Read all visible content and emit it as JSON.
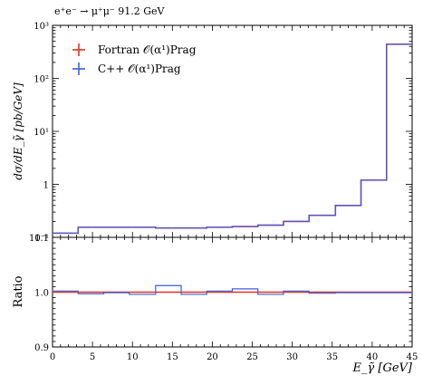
{
  "chart_data": [
    {
      "panel": "main",
      "type": "histogram",
      "process_label": "e⁺e⁻ → μ⁺μ⁻ 91.2 GeV",
      "ylabel": "dσ/dE_γ̃ [pb/GeV]",
      "yscale": "log",
      "ylim": [
        0.1,
        1000
      ],
      "xlim": [
        0,
        45
      ],
      "ytick_labels": [
        "10⁻¹",
        "1",
        "10¹",
        "10²",
        "10³"
      ],
      "legend_position": "top-left",
      "bin_edges": [
        0,
        3.2,
        6.4,
        9.6,
        12.9,
        16.1,
        19.3,
        22.5,
        25.7,
        28.9,
        32.1,
        35.4,
        38.6,
        41.8,
        45
      ],
      "series": [
        {
          "name": "Fortran 𝒪(α¹)Prag",
          "color": "#e8311f",
          "values": [
            0.12,
            0.155,
            0.155,
            0.155,
            0.15,
            0.15,
            0.155,
            0.16,
            0.17,
            0.2,
            0.26,
            0.4,
            1.2,
            440
          ]
        },
        {
          "name": "C++ 𝒪(α¹)Prag",
          "color": "#3a5fe0",
          "values": [
            0.12,
            0.155,
            0.155,
            0.155,
            0.15,
            0.15,
            0.155,
            0.16,
            0.17,
            0.2,
            0.26,
            0.4,
            1.2,
            440
          ]
        }
      ]
    },
    {
      "panel": "ratio",
      "type": "histogram",
      "ylabel": "Ratio",
      "xlabel": "E_γ̃ [GeV]",
      "ylim": [
        0.9,
        1.1
      ],
      "xlim": [
        0,
        45
      ],
      "ytick_labels": [
        "0.9",
        "1.0",
        "1.1"
      ],
      "xtick_labels": [
        "0",
        "5",
        "10",
        "15",
        "20",
        "25",
        "30",
        "35",
        "40",
        "45"
      ],
      "bin_edges": [
        0,
        3.2,
        6.4,
        9.6,
        12.9,
        16.1,
        19.3,
        22.5,
        25.7,
        28.9,
        32.1,
        35.4,
        38.6,
        41.8,
        45
      ],
      "reference": {
        "color": "#e8311f",
        "value": 1.0
      },
      "series": [
        {
          "color": "#3a5fe0",
          "values": [
            1.002,
            0.997,
            0.999,
            0.996,
            1.012,
            0.996,
            1.002,
            1.006,
            0.996,
            1.002,
            0.998,
            0.999,
            0.999,
            0.999
          ]
        }
      ]
    }
  ]
}
